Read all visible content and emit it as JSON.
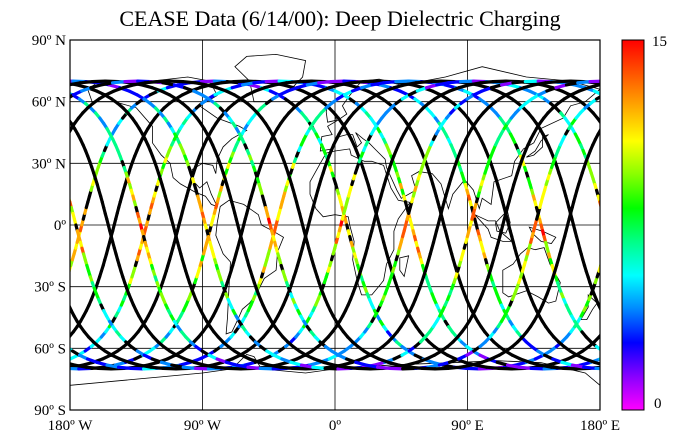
{
  "title": "CEASE Data (6/14/00):  Deep Dielectric Charging",
  "lat_ticks": [
    {
      "value": 90,
      "label": "90º N"
    },
    {
      "value": 60,
      "label": "60º N"
    },
    {
      "value": 30,
      "label": "30º N"
    },
    {
      "value": 0,
      "label": "0º"
    },
    {
      "value": -30,
      "label": "30º S"
    },
    {
      "value": -60,
      "label": "60º S"
    },
    {
      "value": -90,
      "label": "90º S"
    }
  ],
  "lon_ticks": [
    {
      "value": -180,
      "label": "180º W"
    },
    {
      "value": -90,
      "label": "90º W"
    },
    {
      "value": 0,
      "label": "0º"
    },
    {
      "value": 90,
      "label": "90º E"
    },
    {
      "value": 180,
      "label": "180º E"
    }
  ],
  "colorbar": {
    "min": 0,
    "max": 15,
    "min_label": "0",
    "max_label": "15",
    "colors": [
      "#ff00ff",
      "#8800ff",
      "#0000ff",
      "#0088ff",
      "#00ffff",
      "#00ff88",
      "#00ff00",
      "#88ff00",
      "#ffff00",
      "#ffaa00",
      "#ff5500",
      "#ff0000"
    ]
  },
  "map_data": {
    "projection": "equirectangular",
    "lon_range": [
      -180,
      180
    ],
    "lat_range": [
      -90,
      90
    ],
    "orbit_inclination_deg": 70,
    "orbit_ascending_nodes_deg": [
      -172,
      -150,
      -128,
      -106,
      -84,
      -62,
      -40,
      -18,
      4,
      26,
      48,
      70,
      92,
      114,
      136,
      158
    ]
  }
}
